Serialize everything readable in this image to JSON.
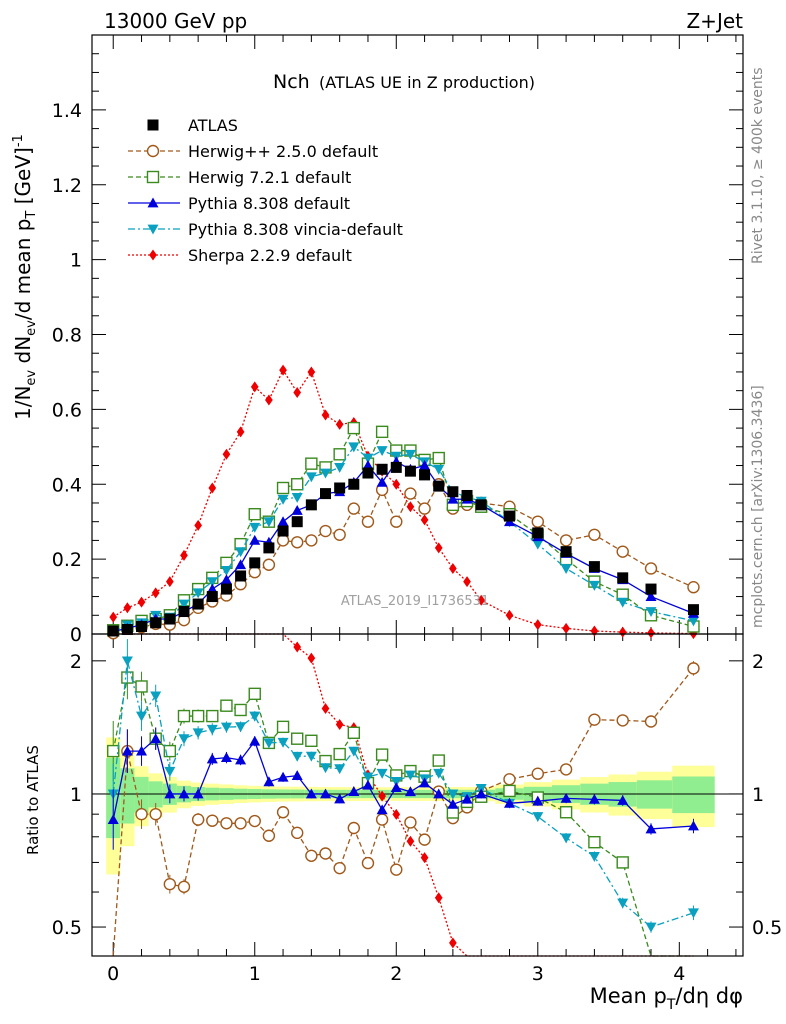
{
  "header": {
    "left": "13000 GeV pp",
    "right": "Z+Jet"
  },
  "plot_title": {
    "main": "Nch",
    "sub": "(ATLAS UE in Z production)"
  },
  "watermark": "ATLAS_2019_I1736531",
  "side_label_top": "Rivet 3.1.10, ≥ 400k events",
  "side_label_bottom": "mcplots.cern.ch [arXiv:1306.3436]",
  "chart_data": {
    "type": "line",
    "title": "Nch (ATLAS UE in Z production)",
    "xlabel": "Mean p_T/dη dφ",
    "ylabel": "1/N_ev dN_ev/d mean p_T [GeV]^-1",
    "ratio_ylabel": "Ratio to ATLAS",
    "xlim": [
      -0.15,
      4.45
    ],
    "ylim_main": [
      0,
      1.6
    ],
    "ylim_ratio": [
      0.43,
      2.3
    ],
    "xticks": [
      "0",
      "1",
      "2",
      "3",
      "4"
    ],
    "yticks_main": [
      "0",
      "0.2",
      "0.4",
      "0.6",
      "0.8",
      "1",
      "1.2",
      "1.4"
    ],
    "yticks_ratio": [
      "0.5",
      "1",
      "2"
    ],
    "x": [
      0.0,
      0.1,
      0.2,
      0.3,
      0.4,
      0.5,
      0.6,
      0.7,
      0.8,
      0.9,
      1.0,
      1.1,
      1.2,
      1.3,
      1.4,
      1.5,
      1.6,
      1.7,
      1.8,
      1.9,
      2.0,
      2.1,
      2.2,
      2.3,
      2.4,
      2.5,
      2.6,
      2.8,
      3.0,
      3.2,
      3.4,
      3.6,
      3.8,
      4.1
    ],
    "series": [
      {
        "name": "ATLAS",
        "values": [
          0.008,
          0.012,
          0.02,
          0.03,
          0.04,
          0.06,
          0.08,
          0.1,
          0.12,
          0.155,
          0.19,
          0.23,
          0.275,
          0.3,
          0.345,
          0.375,
          0.39,
          0.4,
          0.43,
          0.44,
          0.445,
          0.435,
          0.425,
          0.395,
          0.38,
          0.37,
          0.345,
          0.315,
          0.27,
          0.22,
          0.18,
          0.15,
          0.12,
          0.065
        ]
      },
      {
        "name": "Herwig++ 2.5.0 default",
        "values": [
          0.002,
          0.015,
          0.018,
          0.027,
          0.025,
          0.037,
          0.07,
          0.087,
          0.103,
          0.133,
          0.165,
          0.185,
          0.25,
          0.245,
          0.25,
          0.275,
          0.265,
          0.335,
          0.3,
          0.385,
          0.3,
          0.375,
          0.335,
          0.4,
          0.335,
          0.345,
          0.35,
          0.34,
          0.3,
          0.25,
          0.265,
          0.22,
          0.175,
          0.125
        ]
      },
      {
        "name": "Herwig 7.2.1 default",
        "values": [
          0.01,
          0.022,
          0.035,
          0.04,
          0.05,
          0.09,
          0.12,
          0.15,
          0.19,
          0.24,
          0.32,
          0.3,
          0.39,
          0.4,
          0.455,
          0.445,
          0.48,
          0.55,
          0.455,
          0.54,
          0.49,
          0.49,
          0.465,
          0.47,
          0.345,
          0.355,
          0.34,
          0.32,
          0.265,
          0.2,
          0.14,
          0.105,
          0.05,
          0.02
        ]
      },
      {
        "name": "Pythia 8.308 default",
        "values": [
          0.007,
          0.015,
          0.025,
          0.04,
          0.04,
          0.06,
          0.08,
          0.12,
          0.145,
          0.185,
          0.25,
          0.245,
          0.3,
          0.33,
          0.345,
          0.375,
          0.38,
          0.405,
          0.45,
          0.405,
          0.46,
          0.44,
          0.45,
          0.395,
          0.36,
          0.36,
          0.345,
          0.3,
          0.26,
          0.215,
          0.175,
          0.145,
          0.1,
          0.055
        ]
      },
      {
        "name": "Pythia 8.308 vincia-default",
        "values": [
          0.008,
          0.024,
          0.03,
          0.05,
          0.045,
          0.08,
          0.11,
          0.14,
          0.17,
          0.22,
          0.285,
          0.3,
          0.36,
          0.365,
          0.42,
          0.43,
          0.445,
          0.5,
          0.47,
          0.49,
          0.475,
          0.48,
          0.46,
          0.44,
          0.38,
          0.365,
          0.355,
          0.3,
          0.24,
          0.175,
          0.13,
          0.085,
          0.06,
          0.035
        ]
      },
      {
        "name": "Sherpa 2.2.9 default",
        "values": [
          0.045,
          0.07,
          0.085,
          0.11,
          0.14,
          0.21,
          0.29,
          0.39,
          0.48,
          0.54,
          0.66,
          0.625,
          0.705,
          0.645,
          0.7,
          0.585,
          0.56,
          0.565,
          0.475,
          0.435,
          0.4,
          0.34,
          0.305,
          0.23,
          0.175,
          0.14,
          0.09,
          0.05,
          0.025,
          0.015,
          0.008,
          0.005,
          0.003,
          0.001
        ]
      }
    ],
    "legend_position": "top-left",
    "colors": {
      "ATLAS": "#000000",
      "Herwig++ 2.5.0 default": "#a0591a",
      "Herwig 7.2.1 default": "#3a8a1e",
      "Pythia 8.308 default": "#0000dd",
      "Pythia 8.308 vincia-default": "#0aa0c0",
      "Sherpa 2.2.9 default": "#ee0000",
      "band_inner": "#90ee90",
      "band_outer": "#ffff99"
    }
  }
}
